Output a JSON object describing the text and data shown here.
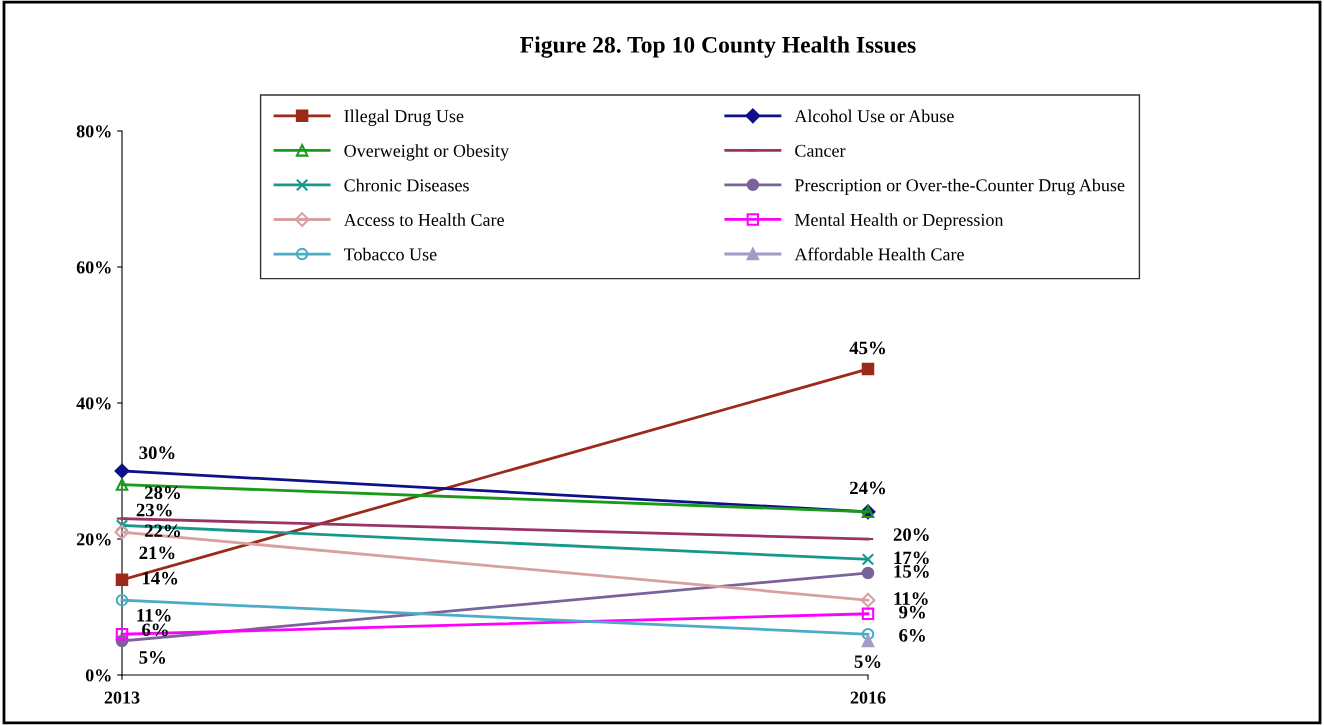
{
  "chart_data": {
    "type": "line",
    "title": "Figure 28. Top 10 County Health Issues",
    "x": [
      2013,
      2016
    ],
    "xlim": [
      2013,
      2016
    ],
    "xticks": [
      2013,
      2016
    ],
    "ylim": [
      0,
      80
    ],
    "yticks": [
      {
        "value": 0,
        "label": "0%"
      },
      {
        "value": 20,
        "label": "20%"
      },
      {
        "value": 40,
        "label": "40%"
      },
      {
        "value": 60,
        "label": "60%"
      },
      {
        "value": 80,
        "label": "80%"
      }
    ],
    "grid": false,
    "legend": "top",
    "series": [
      {
        "name": "Illegal Drug Use",
        "color": "#9b2a1a",
        "marker": "square",
        "values": [
          14,
          45
        ],
        "value_labels": [
          "14%",
          "45%"
        ]
      },
      {
        "name": "Alcohol Use or Abuse",
        "color": "#10108a",
        "marker": "diamond",
        "values": [
          30,
          24
        ],
        "value_labels": [
          "30%",
          "24%"
        ]
      },
      {
        "name": "Overweight or Obesity",
        "color": "#1a9a1a",
        "marker": "triangle",
        "values": [
          28,
          24
        ],
        "value_labels": [
          "28%",
          null
        ]
      },
      {
        "name": "Cancer",
        "color": "#993366",
        "marker": "none",
        "values": [
          23,
          20
        ],
        "value_labels": [
          "23%",
          "20%"
        ]
      },
      {
        "name": "Chronic Diseases",
        "color": "#16998a",
        "marker": "cross",
        "values": [
          22,
          17
        ],
        "value_labels": [
          "22%",
          "17%"
        ]
      },
      {
        "name": "Prescription or Over-the-Counter Drug Abuse",
        "color": "#7a629a",
        "marker": "circle",
        "values": [
          5,
          15
        ],
        "value_labels": [
          "5%",
          "15%"
        ]
      },
      {
        "name": "Access to Health Care",
        "color": "#d8a0a0",
        "marker": "diamond",
        "values": [
          21,
          11
        ],
        "value_labels": [
          "21%",
          "11%"
        ]
      },
      {
        "name": "Mental Health or Depression",
        "color": "#ff00ff",
        "marker": "square",
        "values": [
          6,
          9
        ],
        "value_labels": [
          "6%",
          "9%"
        ]
      },
      {
        "name": "Tobacco Use",
        "color": "#4bacc6",
        "marker": "circle",
        "values": [
          11,
          6
        ],
        "value_labels": [
          "11%",
          "6%"
        ]
      },
      {
        "name": "Affordable Health Care",
        "color": "#a09cc8",
        "marker": "triangle",
        "values": [
          null,
          5
        ],
        "value_labels": [
          null,
          "5%"
        ]
      }
    ]
  }
}
